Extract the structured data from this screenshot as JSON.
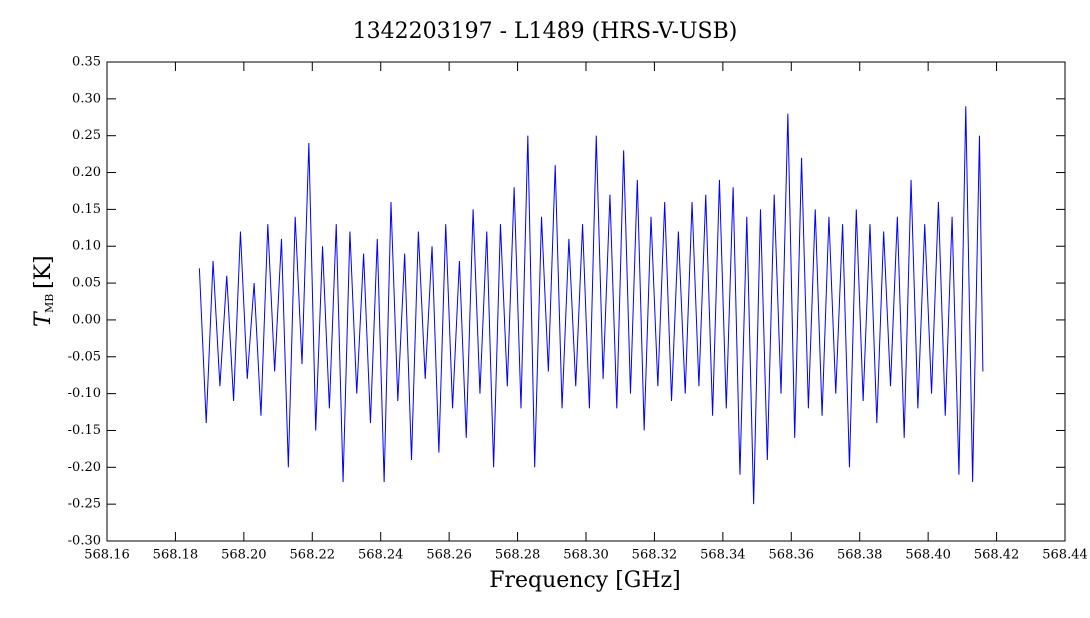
{
  "chart_data": {
    "type": "line",
    "title": "1342203197 - L1489 (HRS-V-USB)",
    "xlabel": "Frequency [GHz]",
    "ylabel": {
      "symbol": "T",
      "sub": "MB",
      "unit": "[K]"
    },
    "xlim": [
      568.16,
      568.44
    ],
    "ylim": [
      -0.3,
      0.35
    ],
    "xticks": [
      568.16,
      568.18,
      {
        "value": 568.2,
        "label": "568.20"
      },
      568.22,
      568.24,
      568.26,
      568.28,
      {
        "value": 568.3,
        "label": "568.30"
      },
      568.32,
      568.34,
      568.36,
      568.38,
      {
        "value": 568.4,
        "label": "568.40"
      },
      568.42,
      568.44
    ],
    "yticks": [
      {
        "value": -0.3,
        "label": "-0.30"
      },
      -0.25,
      {
        "value": -0.2,
        "label": "-0.20"
      },
      -0.15,
      {
        "value": -0.1,
        "label": "-0.10"
      },
      -0.05,
      {
        "value": 0,
        "label": "0.00"
      },
      0.05,
      {
        "value": 0.1,
        "label": "0.10"
      },
      0.15,
      {
        "value": 0.2,
        "label": "0.20"
      },
      0.25,
      {
        "value": 0.3,
        "label": "0.30"
      },
      0.35
    ],
    "series": [
      {
        "color": "#0000ff",
        "x": [
          568.187,
          568.189,
          568.191,
          568.193,
          568.195,
          568.197,
          568.199,
          568.201,
          568.203,
          568.205,
          568.207,
          568.209,
          568.211,
          568.213,
          568.215,
          568.217,
          568.219,
          568.221,
          568.223,
          568.225,
          568.227,
          568.229,
          568.231,
          568.233,
          568.235,
          568.237,
          568.239,
          568.241,
          568.243,
          568.245,
          568.247,
          568.249,
          568.251,
          568.253,
          568.255,
          568.257,
          568.259,
          568.261,
          568.263,
          568.265,
          568.267,
          568.269,
          568.271,
          568.273,
          568.275,
          568.277,
          568.279,
          568.281,
          568.283,
          568.285,
          568.287,
          568.289,
          568.291,
          568.293,
          568.295,
          568.297,
          568.299,
          568.301,
          568.303,
          568.305,
          568.307,
          568.309,
          568.311,
          568.313,
          568.315,
          568.317,
          568.319,
          568.321,
          568.323,
          568.325,
          568.327,
          568.329,
          568.331,
          568.333,
          568.335,
          568.337,
          568.339,
          568.341,
          568.343,
          568.345,
          568.347,
          568.349,
          568.351,
          568.353,
          568.355,
          568.357,
          568.359,
          568.361,
          568.363,
          568.365,
          568.367,
          568.369,
          568.371,
          568.373,
          568.375,
          568.377,
          568.379,
          568.381,
          568.383,
          568.385,
          568.387,
          568.389,
          568.391,
          568.393,
          568.395,
          568.397,
          568.399,
          568.401,
          568.403,
          568.405,
          568.407,
          568.409,
          568.411,
          568.413,
          568.415,
          568.416
        ],
        "values": [
          0.07,
          -0.14,
          0.08,
          -0.09,
          0.06,
          -0.11,
          0.12,
          -0.08,
          0.05,
          -0.13,
          0.13,
          -0.07,
          0.11,
          -0.2,
          0.14,
          -0.06,
          0.24,
          -0.15,
          0.1,
          -0.12,
          0.13,
          -0.22,
          0.12,
          -0.1,
          0.09,
          -0.14,
          0.11,
          -0.22,
          0.16,
          -0.11,
          0.09,
          -0.19,
          0.12,
          -0.08,
          0.1,
          -0.18,
          0.13,
          -0.12,
          0.08,
          -0.16,
          0.15,
          -0.1,
          0.12,
          -0.2,
          0.13,
          -0.09,
          0.18,
          -0.12,
          0.25,
          -0.2,
          0.14,
          -0.07,
          0.21,
          -0.12,
          0.11,
          -0.09,
          0.13,
          -0.12,
          0.25,
          -0.08,
          0.17,
          -0.12,
          0.23,
          -0.1,
          0.19,
          -0.15,
          0.14,
          -0.09,
          0.16,
          -0.11,
          0.12,
          -0.1,
          0.16,
          -0.09,
          0.17,
          -0.13,
          0.19,
          -0.12,
          0.18,
          -0.21,
          0.14,
          -0.25,
          0.15,
          -0.19,
          0.17,
          -0.1,
          0.28,
          -0.16,
          0.22,
          -0.12,
          0.15,
          -0.13,
          0.14,
          -0.1,
          0.13,
          -0.2,
          0.15,
          -0.11,
          0.13,
          -0.14,
          0.12,
          -0.09,
          0.14,
          -0.16,
          0.19,
          -0.12,
          0.13,
          -0.1,
          0.16,
          -0.13,
          0.14,
          -0.21,
          0.29,
          -0.22,
          0.25,
          -0.07
        ]
      }
    ]
  }
}
